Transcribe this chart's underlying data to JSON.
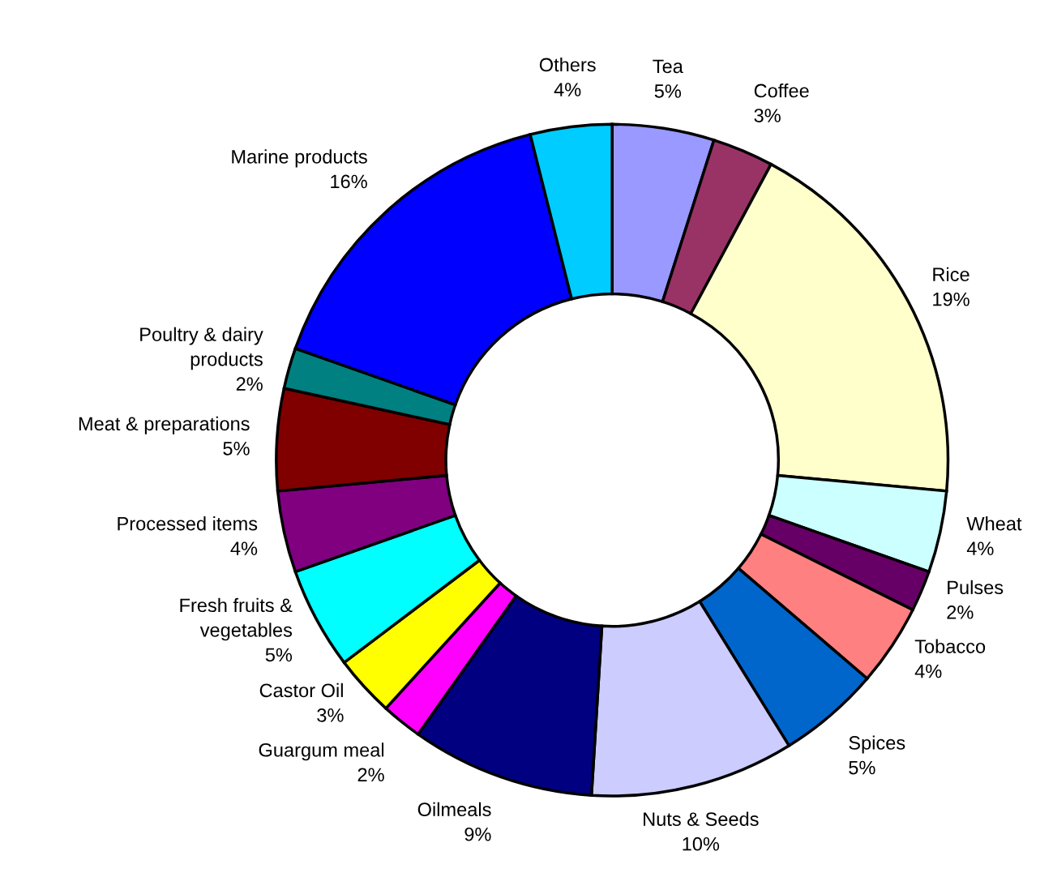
{
  "chart_data": {
    "type": "donut",
    "categories": [
      "Tea",
      "Coffee",
      "Rice",
      "Wheat",
      "Pulses",
      "Tobacco",
      "Spices",
      "Nuts & Seeds",
      "Oilmeals",
      "Guargum meal",
      "Castor Oil",
      "Fresh fruits &\nvegetables",
      "Processed items",
      "Meat & preparations",
      "Poultry & dairy\nproducts",
      "Marine products",
      "Others"
    ],
    "values": [
      5,
      3,
      19,
      4,
      2,
      4,
      5,
      10,
      9,
      2,
      3,
      5,
      4,
      5,
      2,
      16,
      4
    ],
    "value_labels": [
      "5%",
      "3%",
      "19%",
      "4%",
      "2%",
      "4%",
      "5%",
      "10%",
      "9%",
      "2%",
      "3%",
      "5%",
      "4%",
      "5%",
      "2%",
      "16%",
      "4%"
    ],
    "colors": [
      "#9999ff",
      "#993366",
      "#ffffcc",
      "#ccffff",
      "#660066",
      "#ff8080",
      "#0066cc",
      "#ccccff",
      "#000080",
      "#ff00ff",
      "#ffff00",
      "#00ffff",
      "#800080",
      "#800000",
      "#008080",
      "#0000ff",
      "#00ccff"
    ],
    "legend": false
  }
}
